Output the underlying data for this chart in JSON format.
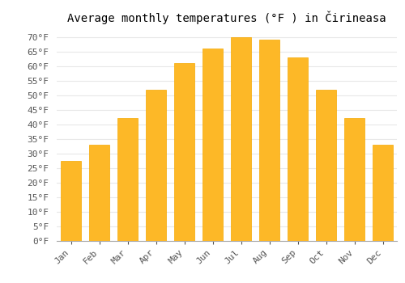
{
  "title": "Average monthly temperatures (°F ) in Čirineasa",
  "months": [
    "Jan",
    "Feb",
    "Mar",
    "Apr",
    "May",
    "Jun",
    "Jul",
    "Aug",
    "Sep",
    "Oct",
    "Nov",
    "Dec"
  ],
  "values": [
    27.5,
    33.0,
    42.0,
    52.0,
    61.0,
    66.0,
    70.0,
    69.0,
    63.0,
    52.0,
    42.0,
    33.0
  ],
  "bar_color": "#FDB827",
  "bar_edge_color": "#F5A800",
  "background_color": "#ffffff",
  "grid_color": "#e8e8e8",
  "ylim": [
    0,
    73
  ],
  "yticks": [
    0,
    5,
    10,
    15,
    20,
    25,
    30,
    35,
    40,
    45,
    50,
    55,
    60,
    65,
    70
  ],
  "title_fontsize": 10,
  "tick_fontsize": 8,
  "font_family": "monospace"
}
